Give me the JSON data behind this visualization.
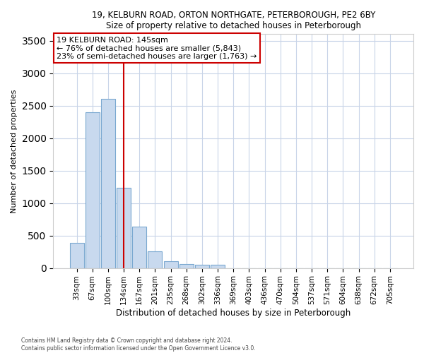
{
  "title1": "19, KELBURN ROAD, ORTON NORTHGATE, PETERBOROUGH, PE2 6BY",
  "title2": "Size of property relative to detached houses in Peterborough",
  "xlabel": "Distribution of detached houses by size in Peterborough",
  "ylabel": "Number of detached properties",
  "categories": [
    "33sqm",
    "67sqm",
    "100sqm",
    "134sqm",
    "167sqm",
    "201sqm",
    "235sqm",
    "268sqm",
    "302sqm",
    "336sqm",
    "369sqm",
    "403sqm",
    "436sqm",
    "470sqm",
    "504sqm",
    "537sqm",
    "571sqm",
    "604sqm",
    "638sqm",
    "672sqm",
    "705sqm"
  ],
  "values": [
    390,
    2400,
    2600,
    1230,
    640,
    255,
    100,
    60,
    55,
    45,
    0,
    0,
    0,
    0,
    0,
    0,
    0,
    0,
    0,
    0,
    0
  ],
  "bar_color": "#c8d9ee",
  "bar_edge_color": "#7aa8d0",
  "annotation_text": "19 KELBURN ROAD: 145sqm\n← 76% of detached houses are smaller (5,843)\n23% of semi-detached houses are larger (1,763) →",
  "vline_x_index": 3.0,
  "vline_color": "#cc0000",
  "annotation_box_edge_color": "#cc0000",
  "ylim": [
    0,
    3600
  ],
  "yticks": [
    0,
    500,
    1000,
    1500,
    2000,
    2500,
    3000,
    3500
  ],
  "footer1": "Contains HM Land Registry data © Crown copyright and database right 2024.",
  "footer2": "Contains public sector information licensed under the Open Government Licence v3.0.",
  "background_color": "#ffffff",
  "plot_background_color": "#ffffff",
  "grid_color": "#c8d4e8"
}
